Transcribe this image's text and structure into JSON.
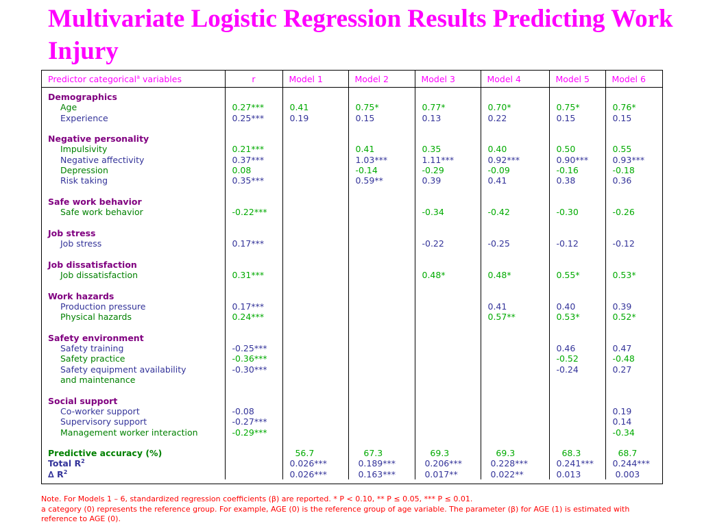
{
  "title": "Multivariate Logistic Regression Results Predicting Work Injury",
  "header": {
    "predictor_pre": "Predictor categorical",
    "predictor_sup": "a",
    "predictor_post": " variables",
    "r": "r",
    "models": [
      "Model 1",
      "Model 2",
      "Model 3",
      "Model 4",
      "Model 5",
      "Model 6"
    ]
  },
  "rows": [
    {
      "type": "heading",
      "label": "Demographics"
    },
    {
      "type": "item",
      "label": "Age",
      "color": "green",
      "r": "0.27***",
      "values": [
        "0.41",
        "0.75*",
        "0.77*",
        "0.70*",
        "0.75*",
        "0.76*"
      ]
    },
    {
      "type": "item",
      "label": "Experience",
      "color": "blue",
      "r": "0.25***",
      "values": [
        "0.19",
        "0.15",
        "0.13",
        "0.22",
        "0.15",
        "0.15"
      ]
    },
    {
      "type": "blank"
    },
    {
      "type": "heading",
      "label": "Negative personality"
    },
    {
      "type": "item",
      "label": "Impulsivity",
      "color": "green",
      "r": "0.21***",
      "values": [
        "",
        "0.41",
        "0.35",
        "0.40",
        "0.50",
        "0.55"
      ]
    },
    {
      "type": "item",
      "label": "Negative affectivity",
      "color": "blue",
      "r": "0.37***",
      "values": [
        "",
        "1.03***",
        "1.11***",
        "0.92***",
        "0.90***",
        "0.93***"
      ]
    },
    {
      "type": "item",
      "label": "Depression",
      "color": "green",
      "r": "0.08",
      "values": [
        "",
        "-0.14",
        "-0.29",
        "-0.09",
        "-0.16",
        "-0.18"
      ]
    },
    {
      "type": "item",
      "label": "Risk taking",
      "color": "blue",
      "r": "0.35***",
      "values": [
        "",
        "0.59**",
        "0.39",
        "0.41",
        "0.38",
        "0.36"
      ]
    },
    {
      "type": "blank"
    },
    {
      "type": "heading",
      "label": "Safe work behavior"
    },
    {
      "type": "item",
      "label": "Safe work behavior",
      "color": "green",
      "r": "-0.22***",
      "values": [
        "",
        "",
        "-0.34",
        "-0.42",
        "-0.30",
        "-0.26"
      ]
    },
    {
      "type": "blank"
    },
    {
      "type": "heading",
      "label": "Job stress"
    },
    {
      "type": "item",
      "label": "Job stress",
      "color": "blue",
      "r": "0.17***",
      "values": [
        "",
        "",
        "-0.22",
        "-0.25",
        "-0.12",
        "-0.12"
      ]
    },
    {
      "type": "blank"
    },
    {
      "type": "heading",
      "label": "Job dissatisfaction"
    },
    {
      "type": "item",
      "label": "Job dissatisfaction",
      "color": "green",
      "r": "0.31***",
      "values": [
        "",
        "",
        "0.48*",
        "0.48*",
        "0.55*",
        "0.53*"
      ]
    },
    {
      "type": "blank"
    },
    {
      "type": "heading",
      "label": "Work hazards"
    },
    {
      "type": "item",
      "label": "Production pressure",
      "color": "blue",
      "r": "0.17***",
      "values": [
        "",
        "",
        "",
        "0.41",
        "0.40",
        "0.39"
      ]
    },
    {
      "type": "item",
      "label": "Physical hazards",
      "color": "green",
      "r": "0.24***",
      "values": [
        "",
        "",
        "",
        "0.57**",
        "0.53*",
        "0.52*"
      ]
    },
    {
      "type": "blank"
    },
    {
      "type": "heading",
      "label": "Safety environment"
    },
    {
      "type": "item",
      "label": "Safety training",
      "color": "blue",
      "r": "-0.25***",
      "values": [
        "",
        "",
        "",
        "",
        "0.46",
        "0.47"
      ]
    },
    {
      "type": "item",
      "label": "Safety practice",
      "color": "green",
      "r": "-0.36***",
      "values": [
        "",
        "",
        "",
        "",
        "-0.52",
        "-0.48"
      ]
    },
    {
      "type": "item",
      "label": "Safety equipment availability",
      "color": "blue",
      "r": "-0.30***",
      "values": [
        "",
        "",
        "",
        "",
        "-0.24",
        "0.27"
      ]
    },
    {
      "type": "item",
      "label": "and maintenance",
      "color": "green",
      "r": "",
      "values": [
        "",
        "",
        "",
        "",
        "",
        ""
      ]
    },
    {
      "type": "blank"
    },
    {
      "type": "heading",
      "label": "Social support"
    },
    {
      "type": "item",
      "label": "Co-worker support",
      "color": "blue",
      "r": "-0.08",
      "values": [
        "",
        "",
        "",
        "",
        "",
        "0.19"
      ]
    },
    {
      "type": "item",
      "label": "Supervisory support",
      "color": "blue",
      "r": "-0.27***",
      "values": [
        "",
        "",
        "",
        "",
        "",
        "0.14"
      ]
    },
    {
      "type": "item",
      "label": "Management worker interaction",
      "color": "green",
      "r": "-0.29***",
      "values": [
        "",
        "",
        "",
        "",
        "",
        "-0.34"
      ]
    },
    {
      "type": "blank"
    },
    {
      "type": "summary",
      "label": "Predictive accuracy (%)",
      "color": "green",
      "values": [
        "  56.7",
        "   67.3",
        "   69.3",
        "   69.3",
        "  68.3",
        "  68.7"
      ]
    },
    {
      "type": "summary",
      "label": "Total R",
      "sup": "2",
      "color": "blue",
      "values": [
        "0.026***",
        " 0.189***",
        " 0.206***",
        " 0.228***",
        "0.241***",
        "0.244***"
      ]
    },
    {
      "type": "summary",
      "label": "∆ R",
      "sup": "2",
      "color": "blue",
      "values": [
        "0.026***",
        " 0.163***",
        " 0.017**",
        " 0.022**",
        "0.013",
        " 0.003"
      ]
    }
  ],
  "notes": [
    "Note. For Models 1 – 6, standardized regression coefficients (β) are reported.  * P < 0.10, **  P ≤ 0.05, *** P ≤ 0.01.",
    "a category (0) represents the reference group. For example, AGE (0) is the reference group of age variable. The parameter (β) for AGE (1) is estimated with reference to AGE (0)."
  ]
}
